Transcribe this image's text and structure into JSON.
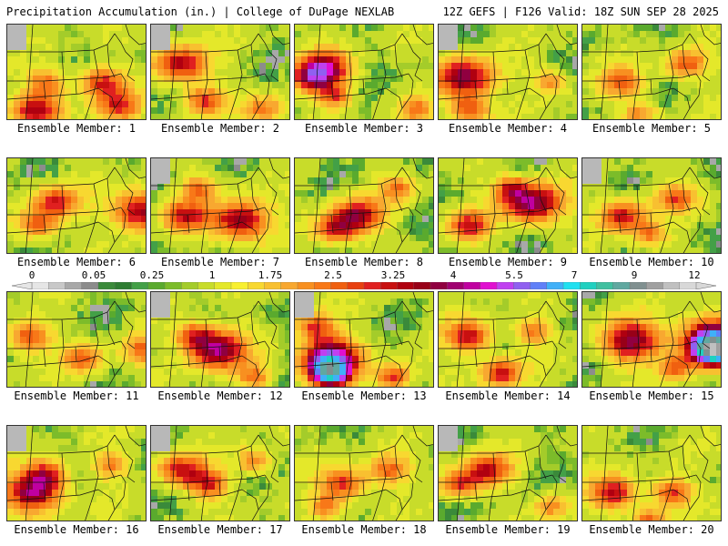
{
  "header": {
    "left_title": "Precipitation Accumulation (in.) | College of DuPage NEXLAB",
    "right_title": "12Z GEFS | F126 Valid: 18Z SUN SEP 28 2025"
  },
  "colorbar": {
    "tick_labels": [
      "0",
      "0.05",
      "0.25",
      "1",
      "1.75",
      "2.5",
      "3.25",
      "4",
      "5.5",
      "7",
      "9",
      "12"
    ],
    "bins_in": [
      0,
      0.01,
      0.02,
      0.05,
      0.1,
      0.15,
      0.2,
      0.25,
      0.5,
      0.75,
      1,
      1.25,
      1.5,
      1.75,
      2,
      2.25,
      2.5,
      2.75,
      3,
      3.25,
      3.5,
      3.75,
      4,
      4.5,
      5,
      5.5,
      6,
      6.5,
      7,
      8,
      9,
      10,
      11,
      12
    ],
    "colors": [
      "#e6e6e6",
      "#c8c8c8",
      "#a8a8a8",
      "#8c8c8c",
      "#3a8a3a",
      "#2e7d32",
      "#43a047",
      "#5aaa2e",
      "#7cbc2a",
      "#a4cc2a",
      "#c8dc2a",
      "#e4e82a",
      "#f8f030",
      "#f8d830",
      "#f8c030",
      "#f8a830",
      "#f89020",
      "#f87818",
      "#f06010",
      "#e84010",
      "#e02020",
      "#c81010",
      "#b00010",
      "#980018",
      "#900040",
      "#a00070",
      "#c000a0",
      "#e010d0",
      "#c040f0",
      "#9060f0",
      "#6080f8",
      "#40b0f8",
      "#20e0f0",
      "#20d0c0",
      "#40c0a0",
      "#60a8a0",
      "#809090",
      "#a0a0a0",
      "#c0c0c0",
      "#d8d8d8"
    ]
  },
  "members": [
    {
      "label": "Ensemble Member: 1",
      "blobs": [
        [
          30,
          90,
          0.7,
          2.5
        ],
        [
          100,
          60,
          0.55,
          2.2
        ],
        [
          40,
          60,
          0.45,
          1.6
        ],
        [
          120,
          85,
          0.6,
          2
        ]
      ]
    },
    {
      "label": "Ensemble Member: 2",
      "blobs": [
        [
          30,
          40,
          0.7,
          2.7
        ],
        [
          55,
          80,
          0.5,
          2
        ],
        [
          120,
          90,
          0.5,
          1.6
        ]
      ]
    },
    {
      "label": "Ensemble Member: 3",
      "blobs": [
        [
          30,
          45,
          0.7,
          3
        ],
        [
          15,
          55,
          0.5,
          2.2
        ],
        [
          40,
          75,
          0.4,
          1.8
        ],
        [
          130,
          90,
          0.4,
          1.5
        ]
      ]
    },
    {
      "label": "Ensemble Member: 4",
      "blobs": [
        [
          25,
          55,
          0.8,
          3.2
        ],
        [
          30,
          90,
          0.5,
          2
        ],
        [
          120,
          60,
          0.4,
          1.5
        ]
      ]
    },
    {
      "label": "Ensemble Member: 5",
      "blobs": [
        [
          40,
          60,
          0.55,
          1.8
        ],
        [
          110,
          40,
          0.5,
          2
        ],
        [
          60,
          95,
          0.4,
          1.4
        ]
      ]
    },
    {
      "label": "Ensemble Member: 6",
      "blobs": [
        [
          50,
          45,
          0.6,
          2.3
        ],
        [
          145,
          55,
          0.8,
          3
        ],
        [
          30,
          70,
          0.5,
          1.8
        ]
      ]
    },
    {
      "label": "Ensemble Member: 7",
      "blobs": [
        [
          35,
          60,
          0.6,
          2.2
        ],
        [
          95,
          65,
          0.8,
          3
        ],
        [
          50,
          30,
          0.4,
          1.6
        ]
      ]
    },
    {
      "label": "Ensemble Member: 8",
      "blobs": [
        [
          65,
          60,
          0.7,
          2.8
        ],
        [
          40,
          75,
          0.5,
          2
        ],
        [
          110,
          30,
          0.4,
          1.5
        ]
      ]
    },
    {
      "label": "Ensemble Member: 9",
      "blobs": [
        [
          100,
          45,
          0.8,
          3.4
        ],
        [
          30,
          70,
          0.5,
          2.3
        ],
        [
          75,
          30,
          0.4,
          1.8
        ]
      ]
    },
    {
      "label": "Ensemble Member: 10",
      "blobs": [
        [
          40,
          60,
          0.6,
          2.4
        ],
        [
          100,
          40,
          0.5,
          1.8
        ],
        [
          70,
          80,
          0.4,
          1.4
        ]
      ]
    },
    {
      "label": "Ensemble Member: 11",
      "blobs": [
        [
          20,
          45,
          0.55,
          2
        ],
        [
          80,
          70,
          0.5,
          1.8
        ],
        [
          145,
          60,
          0.5,
          1.6
        ]
      ]
    },
    {
      "label": "Ensemble Member: 12",
      "blobs": [
        [
          70,
          60,
          0.8,
          3.2
        ],
        [
          45,
          45,
          0.5,
          2
        ],
        [
          110,
          90,
          0.4,
          1.5
        ]
      ]
    },
    {
      "label": "Ensemble Member: 13",
      "blobs": [
        [
          35,
          70,
          0.8,
          4.5
        ],
        [
          35,
          85,
          0.4,
          5.5
        ],
        [
          20,
          35,
          0.5,
          2
        ],
        [
          105,
          90,
          0.4,
          2.2
        ]
      ]
    },
    {
      "label": "Ensemble Member: 14",
      "blobs": [
        [
          30,
          45,
          0.6,
          2.5
        ],
        [
          65,
          85,
          0.5,
          2.4
        ],
        [
          100,
          40,
          0.4,
          1.6
        ]
      ]
    },
    {
      "label": "Ensemble Member: 15",
      "blobs": [
        [
          50,
          50,
          0.8,
          3.2
        ],
        [
          140,
          50,
          0.9,
          4.8
        ],
        [
          140,
          60,
          0.4,
          6.5
        ],
        [
          100,
          80,
          0.4,
          1.8
        ]
      ]
    },
    {
      "label": "Ensemble Member: 16",
      "blobs": [
        [
          25,
          70,
          0.8,
          3.2
        ],
        [
          40,
          50,
          0.5,
          2
        ],
        [
          110,
          40,
          0.4,
          1.5
        ]
      ]
    },
    {
      "label": "Ensemble Member: 17",
      "blobs": [
        [
          30,
          45,
          0.6,
          2.4
        ],
        [
          60,
          60,
          0.5,
          2.2
        ],
        [
          110,
          35,
          0.4,
          1.6
        ]
      ]
    },
    {
      "label": "Ensemble Member: 18",
      "blobs": [
        [
          50,
          60,
          0.6,
          2.2
        ],
        [
          100,
          45,
          0.5,
          1.8
        ],
        [
          30,
          85,
          0.4,
          1.5
        ]
      ]
    },
    {
      "label": "Ensemble Member: 19",
      "blobs": [
        [
          50,
          45,
          0.6,
          2.4
        ],
        [
          20,
          60,
          0.5,
          1.9
        ],
        [
          120,
          85,
          0.4,
          1.5
        ]
      ]
    },
    {
      "label": "Ensemble Member: 20",
      "blobs": [
        [
          30,
          70,
          0.6,
          2.4
        ],
        [
          95,
          70,
          0.5,
          2.1
        ],
        [
          70,
          100,
          0.4,
          1.8
        ]
      ]
    }
  ]
}
